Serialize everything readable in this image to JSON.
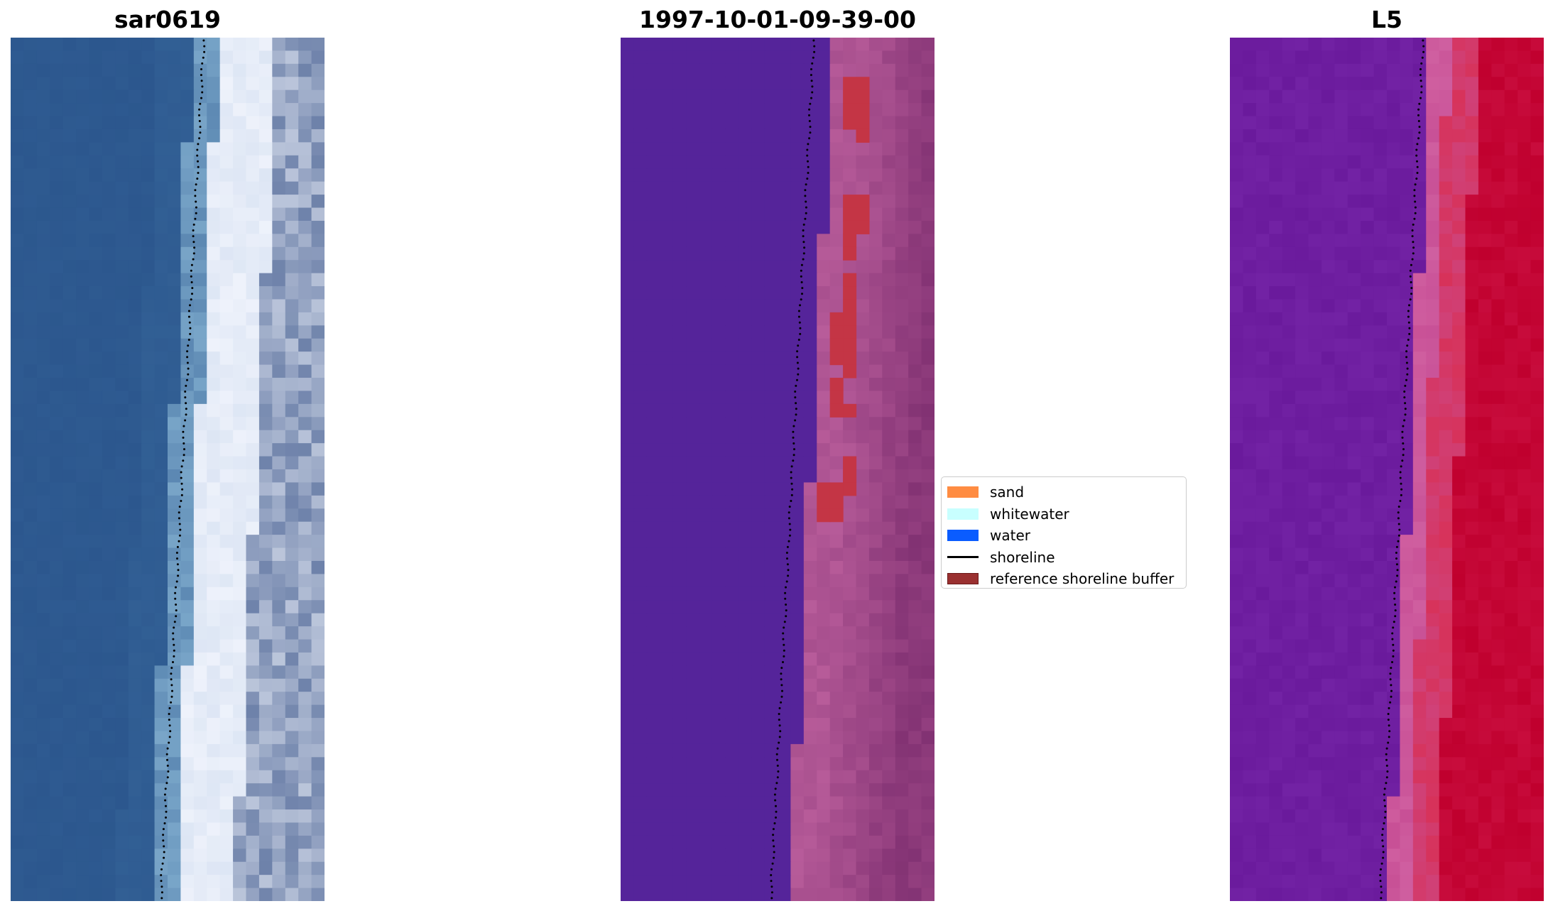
{
  "panels": [
    {
      "title": "sar0619",
      "kind": "rgb"
    },
    {
      "title": "1997-10-01-09-39-00",
      "kind": "classified"
    },
    {
      "title": "L5",
      "kind": "index"
    }
  ],
  "legend": {
    "items": [
      {
        "label": "sand",
        "color": "#ff8c42",
        "type": "patch"
      },
      {
        "label": "whitewater",
        "color": "#c8ffff",
        "type": "patch"
      },
      {
        "label": "water",
        "color": "#0a5cff",
        "type": "patch"
      },
      {
        "label": "shoreline",
        "color": "#000000",
        "type": "line"
      },
      {
        "label": "reference shoreline buffer",
        "color": "#9a3030",
        "type": "buffer"
      }
    ]
  },
  "colors": {
    "rgb_water": "#2c578e",
    "rgb_surf": "#eef2fb",
    "class_water": "#55249a",
    "class_sand": "#b85c9a",
    "class_buffer": "#c43545",
    "index_low": "#6a1a9c",
    "index_high": "#c0002e"
  }
}
